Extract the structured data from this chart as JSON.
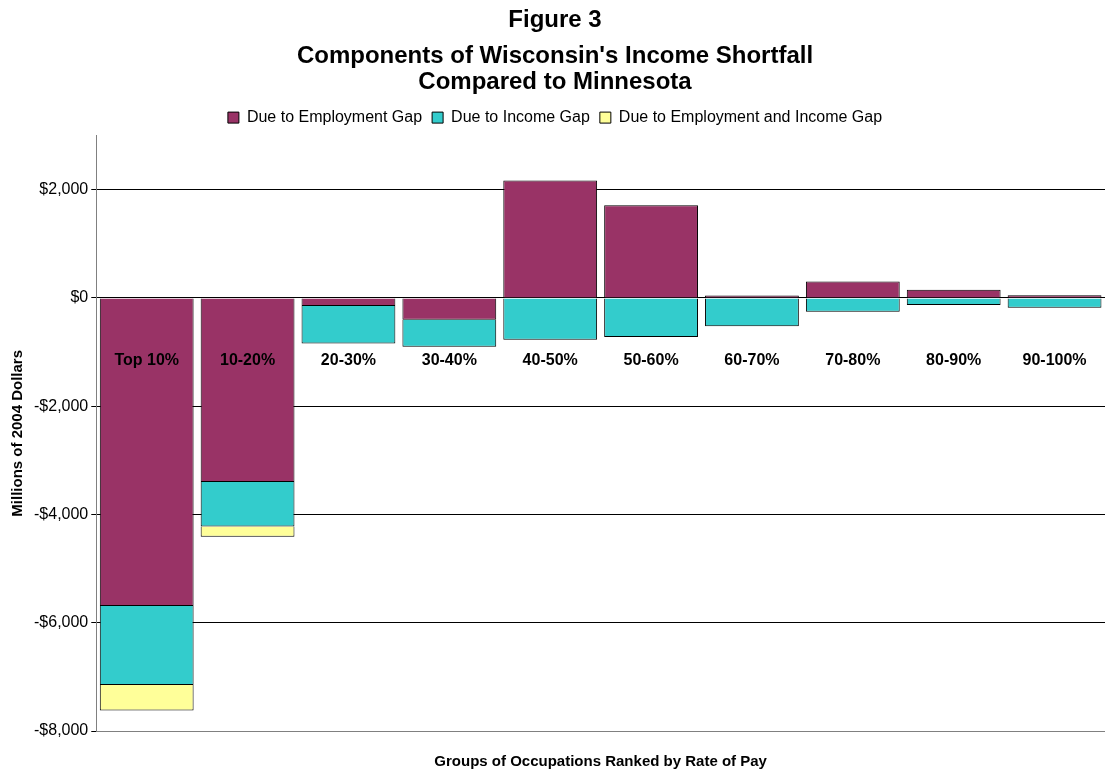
{
  "chart_data": {
    "type": "bar",
    "title": "Figure 3",
    "subtitle": "Components of Wisconsin's Income Shortfall Compared to Minnesota",
    "xlabel": "Groups of Occupations Ranked by Rate of Pay",
    "ylabel": "Millions of 2004 Dollars",
    "categories": [
      "Top 10%",
      "10-20%",
      "20-30%",
      "30-40%",
      "40-50%",
      "50-60%",
      "60-70%",
      "70-80%",
      "80-90%",
      "90-100%"
    ],
    "stacked": true,
    "legend": "top",
    "grid": "y",
    "ylim": [
      -8000,
      3000
    ],
    "yticks": [
      {
        "value": -8000,
        "label": "-$8,000"
      },
      {
        "value": -6000,
        "label": "-$6,000"
      },
      {
        "value": -4000,
        "label": "-$4,000"
      },
      {
        "value": -2000,
        "label": "-$2,000"
      },
      {
        "value": 0,
        "label": "$0"
      },
      {
        "value": 2000,
        "label": "$2,000"
      }
    ],
    "series": [
      {
        "name": "Due to Employment Gap",
        "color": "#993366",
        "values": [
          -5690,
          -3400,
          -150,
          -400,
          2170,
          1715,
          45,
          305,
          150,
          50
        ]
      },
      {
        "name": "Due to Income Gap",
        "color": "#33cccc",
        "values": [
          -1460,
          -820,
          -690,
          -500,
          -770,
          -720,
          -520,
          -255,
          -130,
          -180
        ]
      },
      {
        "name": "Due to Employment and Income Gap",
        "color": "#ffff99",
        "values": [
          -470,
          -190,
          null,
          null,
          null,
          null,
          null,
          null,
          null,
          null
        ]
      }
    ]
  }
}
